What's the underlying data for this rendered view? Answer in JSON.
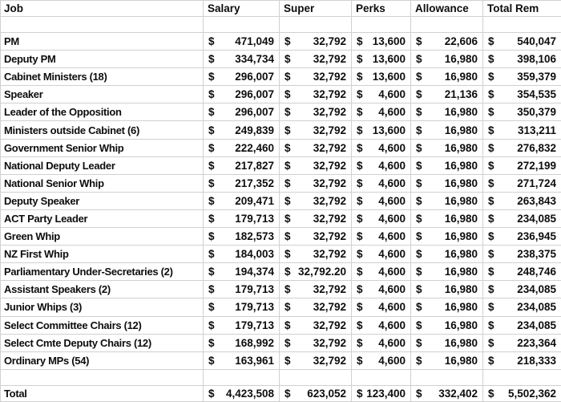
{
  "colors": {
    "grid": "#d0d0d0",
    "text": "#0d0d0d",
    "background": "#ffffff"
  },
  "table": {
    "currency_symbol": "$",
    "columns": [
      "Job",
      "Salary",
      "Super",
      "Perks",
      "Allowance",
      "Total Rem"
    ],
    "rows": [
      {
        "job": "PM",
        "salary": "471,049",
        "super": "32,792",
        "perks": "13,600",
        "allowance": "22,606",
        "total": "540,047"
      },
      {
        "job": "Deputy PM",
        "salary": "334,734",
        "super": "32,792",
        "perks": "13,600",
        "allowance": "16,980",
        "total": "398,106"
      },
      {
        "job": "Cabinet Ministers (18)",
        "salary": "296,007",
        "super": "32,792",
        "perks": "13,600",
        "allowance": "16,980",
        "total": "359,379"
      },
      {
        "job": "Speaker",
        "salary": "296,007",
        "super": "32,792",
        "perks": "4,600",
        "allowance": "21,136",
        "total": "354,535"
      },
      {
        "job": "Leader of the Opposition",
        "salary": "296,007",
        "super": "32,792",
        "perks": "4,600",
        "allowance": "16,980",
        "total": "350,379"
      },
      {
        "job": "Ministers outside Cabinet (6)",
        "salary": "249,839",
        "super": "32,792",
        "perks": "13,600",
        "allowance": "16,980",
        "total": "313,211"
      },
      {
        "job": "Government Senior Whip",
        "salary": "222,460",
        "super": "32,792",
        "perks": "4,600",
        "allowance": "16,980",
        "total": "276,832"
      },
      {
        "job": "National Deputy Leader",
        "salary": "217,827",
        "super": "32,792",
        "perks": "4,600",
        "allowance": "16,980",
        "total": "272,199"
      },
      {
        "job": "National Senior Whip",
        "salary": "217,352",
        "super": "32,792",
        "perks": "4,600",
        "allowance": "16,980",
        "total": "271,724"
      },
      {
        "job": "Deputy Speaker",
        "salary": "209,471",
        "super": "32,792",
        "perks": "4,600",
        "allowance": "16,980",
        "total": "263,843"
      },
      {
        "job": "ACT Party Leader",
        "salary": "179,713",
        "super": "32,792",
        "perks": "4,600",
        "allowance": "16,980",
        "total": "234,085"
      },
      {
        "job": "Green Whip",
        "salary": "182,573",
        "super": "32,792",
        "perks": "4,600",
        "allowance": "16,980",
        "total": "236,945"
      },
      {
        "job": "NZ First Whip",
        "salary": "184,003",
        "super": "32,792",
        "perks": "4,600",
        "allowance": "16,980",
        "total": "238,375"
      },
      {
        "job": "Parliamentary Under-Secretaries (2)",
        "salary": "194,374",
        "super": "32,792.20",
        "perks": "4,600",
        "allowance": "16,980",
        "total": "248,746"
      },
      {
        "job": "Assistant Speakers (2)",
        "salary": "179,713",
        "super": "32,792",
        "perks": "4,600",
        "allowance": "16,980",
        "total": "234,085"
      },
      {
        "job": "Junior Whips (3)",
        "salary": "179,713",
        "super": "32,792",
        "perks": "4,600",
        "allowance": "16,980",
        "total": "234,085"
      },
      {
        "job": "Select Committee Chairs (12)",
        "salary": "179,713",
        "super": "32,792",
        "perks": "4,600",
        "allowance": "16,980",
        "total": "234,085"
      },
      {
        "job": "Select Cmte Deputy Chairs (12)",
        "salary": "168,992",
        "super": "32,792",
        "perks": "4,600",
        "allowance": "16,980",
        "total": "223,364"
      },
      {
        "job": "Ordinary MPs (54)",
        "salary": "163,961",
        "super": "32,792",
        "perks": "4,600",
        "allowance": "16,980",
        "total": "218,333"
      }
    ],
    "total_row": {
      "job": "Total",
      "salary": "4,423,508",
      "super": "623,052",
      "perks": "123,400",
      "allowance": "332,402",
      "total": "5,502,362"
    }
  }
}
